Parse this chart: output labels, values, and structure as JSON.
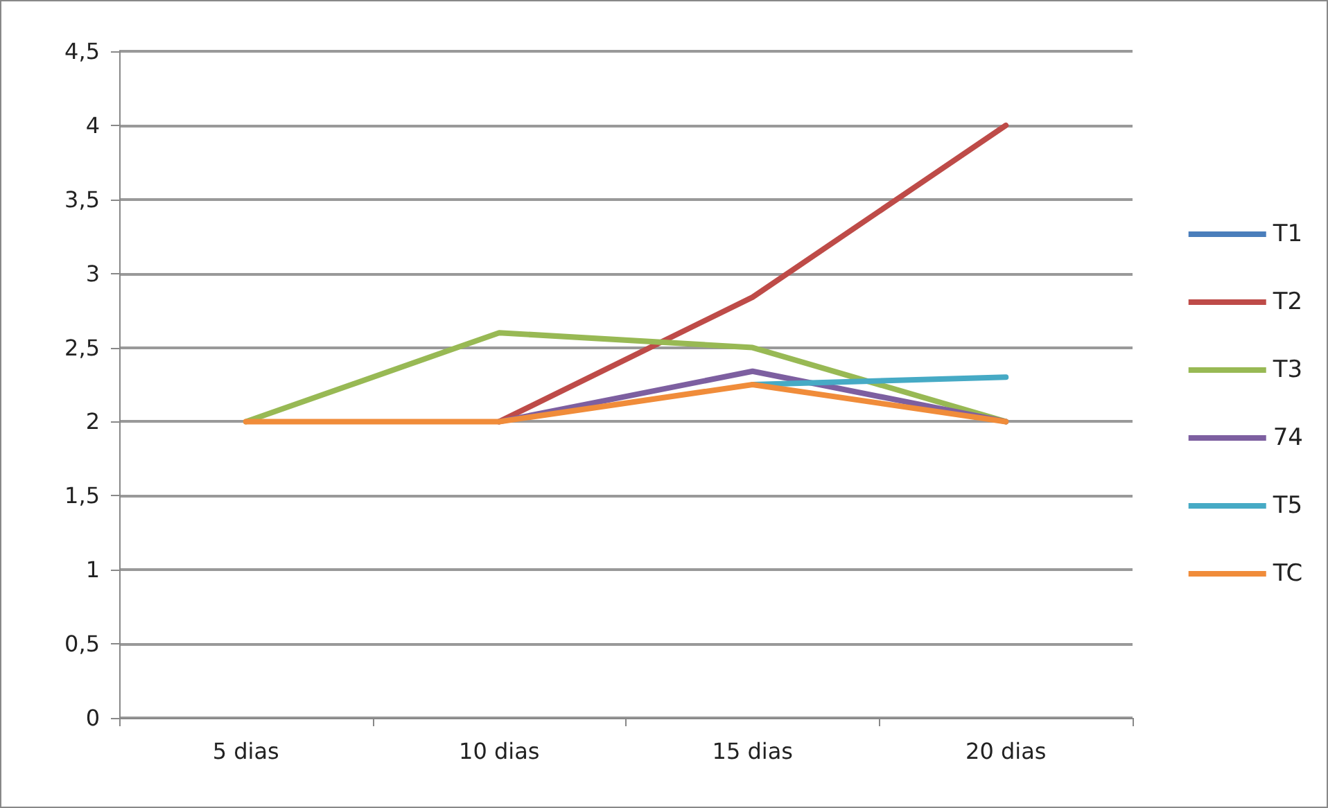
{
  "chart_data": {
    "type": "line",
    "categories": [
      "5 dias",
      "10 dias",
      "15 dias",
      "20 dias"
    ],
    "series": [
      {
        "name": "T1",
        "color": "#4a7ebb",
        "values": [
          null,
          null,
          null,
          null
        ]
      },
      {
        "name": "T2",
        "color": "#be4b48",
        "values": [
          null,
          2,
          2.84,
          4
        ]
      },
      {
        "name": "T3",
        "color": "#98b954",
        "values": [
          2,
          2.6,
          2.5,
          2
        ]
      },
      {
        "name": "74",
        "color": "#7d5fa0",
        "values": [
          null,
          2,
          2.34,
          2
        ]
      },
      {
        "name": "T5",
        "color": "#46aac5",
        "values": [
          null,
          null,
          2.25,
          2.3
        ]
      },
      {
        "name": "TC",
        "color": "#f08c3a",
        "values": [
          2,
          2,
          2.25,
          2
        ]
      }
    ],
    "ylim": [
      0,
      4.5
    ],
    "yticks": [
      {
        "value": 0,
        "label": "0"
      },
      {
        "value": 0.5,
        "label": "0,5"
      },
      {
        "value": 1,
        "label": "1"
      },
      {
        "value": 1.5,
        "label": "1,5"
      },
      {
        "value": 2,
        "label": "2"
      },
      {
        "value": 2.5,
        "label": "2,5"
      },
      {
        "value": 3,
        "label": "3"
      },
      {
        "value": 3.5,
        "label": "3,5"
      },
      {
        "value": 4,
        "label": "4"
      },
      {
        "value": 4.5,
        "label": "4,5"
      }
    ],
    "grid": "y",
    "legend": "right",
    "marker": "none",
    "line_style": "solid"
  }
}
